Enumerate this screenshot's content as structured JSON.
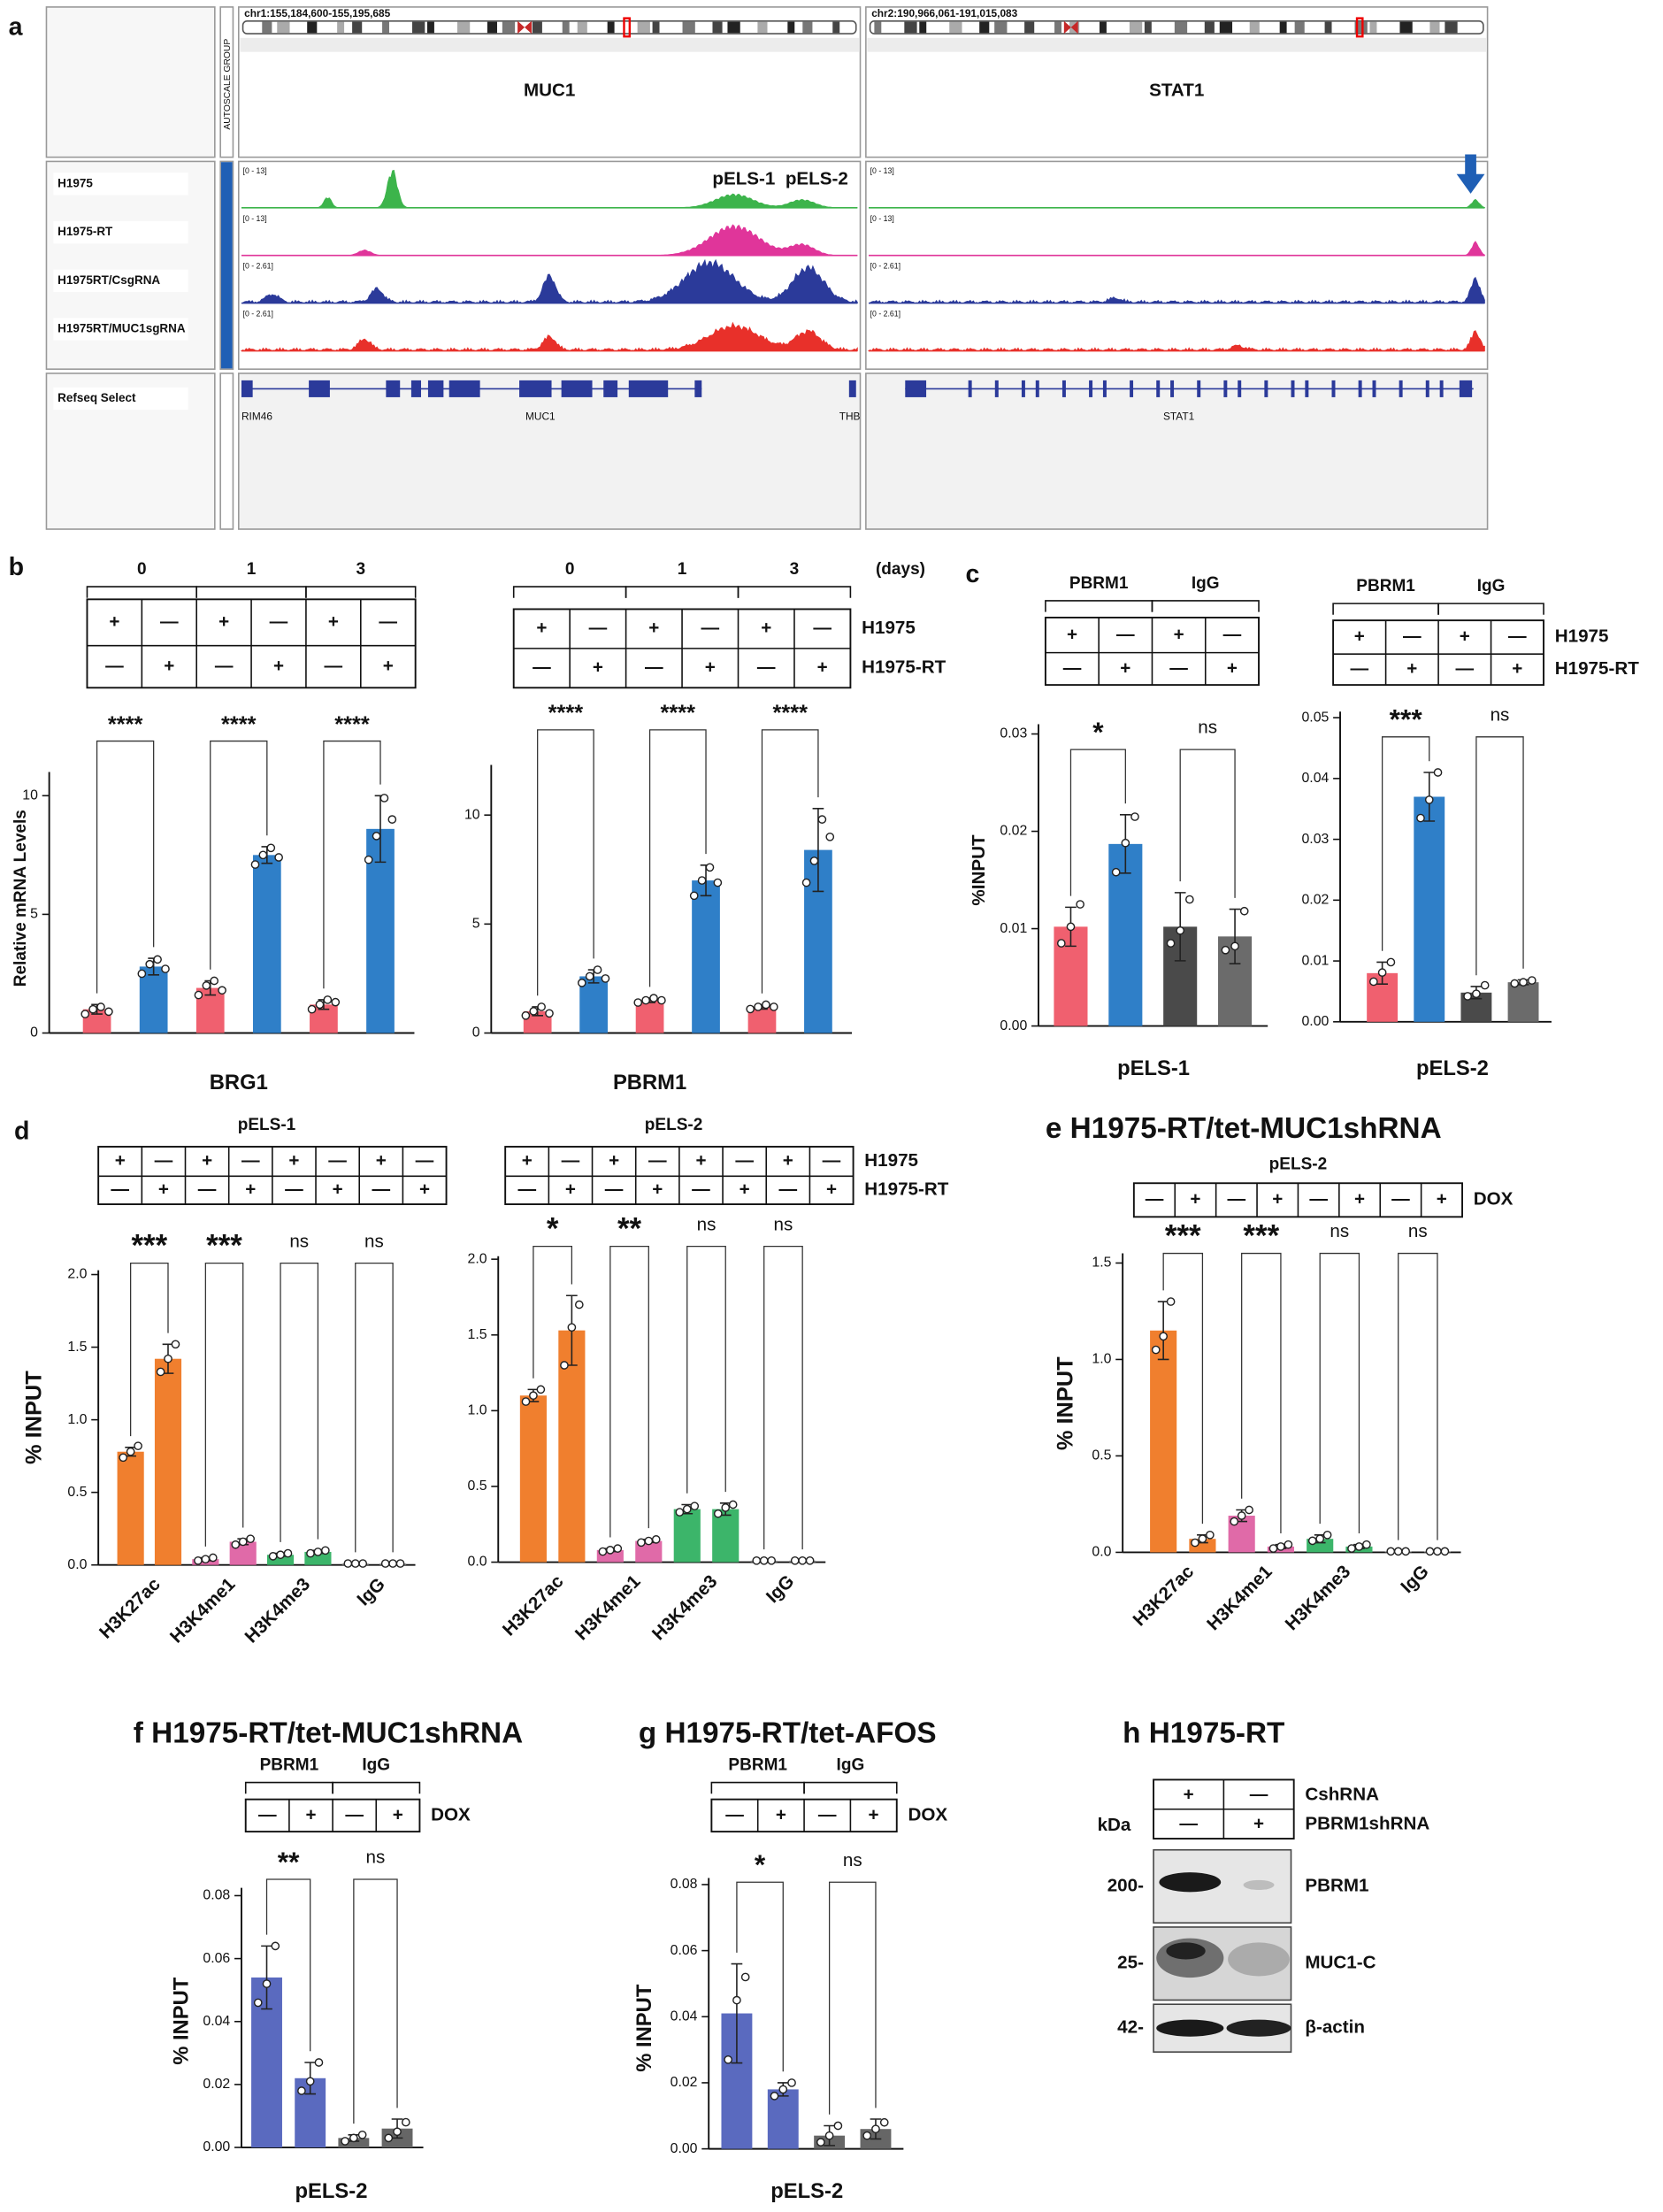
{
  "panel_labels": [
    "a",
    "b",
    "c",
    "d"
  ],
  "browser": {
    "loci": [
      "chr1:155,184,600-155,195,685",
      "chr2:190,966,061-191,015,083"
    ],
    "autoscale": "AUTOSCALE GROUP",
    "genes": [
      "MUC1",
      "STAT1"
    ],
    "tracks": [
      {
        "name": "H1975",
        "range": "[0 - 13]",
        "color": "#3cb44b"
      },
      {
        "name": "H1975-RT",
        "range": "[0 - 13]",
        "color": "#e0359a"
      },
      {
        "name": "H1975RT/CsgRNA",
        "range": "[0 - 2.61]",
        "color": "#2b3a9a"
      },
      {
        "name": "H1975RT/MUC1sgRNA",
        "range": "[0 - 2.61]",
        "color": "#e8302a"
      }
    ],
    "peaks": [
      "pELS-1",
      "pELS-2"
    ],
    "refseq": {
      "name": "Refseq Select",
      "labels": [
        "RIM46",
        "MUC1",
        "THB",
        "STAT1"
      ]
    }
  },
  "chart_data": [
    {
      "type": "bar",
      "xlabel": "BRG1",
      "ylabel": "Relative mRNA Levels",
      "conditions": {
        "headers": [
          "0",
          "1",
          "3"
        ],
        "rows": [
          {
            "cells": [
              "+",
              "—",
              "+",
              "—",
              "+",
              "—"
            ]
          },
          {
            "cells": [
              "—",
              "+",
              "—",
              "+",
              "—",
              "+"
            ]
          }
        ]
      },
      "values": [
        1.0,
        2.8,
        1.9,
        7.5,
        1.2,
        8.6
      ],
      "errors": [
        0.2,
        0.35,
        0.3,
        0.35,
        0.2,
        1.4
      ],
      "points": [
        [
          0.8,
          1.0,
          1.1,
          0.9
        ],
        [
          2.5,
          2.9,
          3.1,
          2.7
        ],
        [
          1.6,
          2.0,
          2.2,
          1.8
        ],
        [
          7.1,
          7.5,
          7.8,
          7.4
        ],
        [
          1.0,
          1.2,
          1.4,
          1.3
        ],
        [
          7.3,
          8.3,
          9.9,
          9.0
        ]
      ],
      "colors": [
        "#f0606f",
        "#2f7fc8",
        "#f0606f",
        "#2f7fc8",
        "#f0606f",
        "#2f7fc8"
      ],
      "ylim": [
        0,
        11
      ],
      "yticks": [
        0,
        5,
        10
      ],
      "significance": [
        "****",
        "****",
        "****"
      ]
    },
    {
      "type": "bar",
      "xlabel": "PBRM1",
      "conditions": {
        "headers": [
          "0",
          "1",
          "3"
        ],
        "header_unit": "(days)",
        "rows": [
          {
            "name": "H1975",
            "color": "#e8302a",
            "cells": [
              "+",
              "—",
              "+",
              "—",
              "+",
              "—"
            ]
          },
          {
            "name": "H1975-RT",
            "color": "#2b48b0",
            "cells": [
              "—",
              "+",
              "—",
              "+",
              "—",
              "+"
            ]
          }
        ]
      },
      "values": [
        1.0,
        2.6,
        1.5,
        7.0,
        1.2,
        8.4
      ],
      "errors": [
        0.2,
        0.3,
        0.1,
        0.7,
        0.1,
        1.9
      ],
      "points": [
        [
          0.8,
          1.0,
          1.2,
          0.9
        ],
        [
          2.3,
          2.6,
          2.9,
          2.5
        ],
        [
          1.4,
          1.5,
          1.6,
          1.5
        ],
        [
          6.3,
          7.0,
          7.6,
          6.9
        ],
        [
          1.1,
          1.2,
          1.3,
          1.2
        ],
        [
          6.9,
          7.9,
          9.8,
          9.0
        ]
      ],
      "colors": [
        "#f0606f",
        "#2f7fc8",
        "#f0606f",
        "#2f7fc8",
        "#f0606f",
        "#2f7fc8"
      ],
      "ylim": [
        0,
        12.3
      ],
      "yticks": [
        0,
        5,
        10
      ],
      "significance": [
        "****",
        "****",
        "****"
      ]
    },
    {
      "type": "bar",
      "xlabel": "pELS-1",
      "ylabel": "%INPUT",
      "conditions": {
        "headers": [
          "PBRM1",
          "IgG"
        ],
        "rows": [
          {
            "cells": [
              "+",
              "—",
              "+",
              "—"
            ]
          },
          {
            "cells": [
              "—",
              "+",
              "—",
              "+"
            ]
          }
        ]
      },
      "values": [
        0.0102,
        0.0187,
        0.0102,
        0.0092
      ],
      "errors": [
        0.002,
        0.003,
        0.0035,
        0.0028
      ],
      "points": [
        [
          0.0085,
          0.0102,
          0.0125
        ],
        [
          0.0158,
          0.0188,
          0.0215
        ],
        [
          0.0085,
          0.0098,
          0.013
        ],
        [
          0.0078,
          0.0082,
          0.0118
        ]
      ],
      "colors": [
        "#f0606f",
        "#2f7fc8",
        "#4a4a4a",
        "#6b6b6b"
      ],
      "ylim": [
        0,
        0.031
      ],
      "yticks": [
        {
          "value": 0,
          "label": "0.00"
        },
        {
          "value": 0.01,
          "label": "0.01"
        },
        {
          "value": 0.02,
          "label": "0.02"
        },
        {
          "value": 0.03,
          "label": "0.03"
        }
      ],
      "significance": [
        "*",
        "ns"
      ]
    },
    {
      "type": "bar",
      "xlabel": "pELS-2",
      "conditions": {
        "headers": [
          "PBRM1",
          "IgG"
        ],
        "rows": [
          {
            "name": "H1975",
            "color": "#e8302a",
            "cells": [
              "+",
              "—",
              "+",
              "—"
            ]
          },
          {
            "name": "H1975-RT",
            "color": "#2b48b0",
            "cells": [
              "—",
              "+",
              "—",
              "+"
            ]
          }
        ]
      },
      "values": [
        0.008,
        0.037,
        0.0048,
        0.0065
      ],
      "errors": [
        0.0018,
        0.004,
        0.001,
        0.0004
      ],
      "points": [
        [
          0.0066,
          0.0081,
          0.0098
        ],
        [
          0.0335,
          0.0365,
          0.041
        ],
        [
          0.0042,
          0.0046,
          0.006
        ],
        [
          0.0063,
          0.0065,
          0.0068
        ]
      ],
      "colors": [
        "#f0606f",
        "#2f7fc8",
        "#4a4a4a",
        "#6b6b6b"
      ],
      "ylim": [
        0,
        0.051
      ],
      "yticks": [
        {
          "value": 0,
          "label": "0.00"
        },
        {
          "value": 0.01,
          "label": "0.01"
        },
        {
          "value": 0.02,
          "label": "0.02"
        },
        {
          "value": 0.03,
          "label": "0.03"
        },
        {
          "value": 0.04,
          "label": "0.04"
        },
        {
          "value": 0.05,
          "label": "0.05"
        }
      ],
      "significance": [
        "***",
        "ns"
      ]
    },
    {
      "type": "bar",
      "subtitle": "pELS-1",
      "ylabel": "% INPUT",
      "groups": [
        "H3K27ac",
        "H3K4me1",
        "H3K4me3",
        "IgG"
      ],
      "conditions": {
        "rows": [
          {
            "cells": [
              "+",
              "—",
              "+",
              "—",
              "+",
              "—",
              "+",
              "—"
            ]
          },
          {
            "cells": [
              "—",
              "+",
              "—",
              "+",
              "—",
              "+",
              "—",
              "+"
            ]
          }
        ]
      },
      "values": [
        0.78,
        1.42,
        0.04,
        0.16,
        0.07,
        0.09,
        0.01,
        0.01
      ],
      "errors": [
        0.03,
        0.1,
        0.01,
        0.02,
        0.01,
        0.01,
        0,
        0
      ],
      "points": [
        [
          0.74,
          0.78,
          0.82
        ],
        [
          1.33,
          1.42,
          1.52
        ],
        [
          0.03,
          0.04,
          0.05
        ],
        [
          0.14,
          0.16,
          0.18
        ],
        [
          0.06,
          0.07,
          0.08
        ],
        [
          0.08,
          0.09,
          0.1
        ],
        [
          0.01,
          0.01,
          0.01
        ],
        [
          0.01,
          0.01,
          0.01
        ]
      ],
      "colors": [
        "#f07f2e",
        "#f07f2e",
        "#e06aa8",
        "#e06aa8",
        "#3cb56a",
        "#3cb56a",
        "#8a8a8a",
        "#8a8a8a"
      ],
      "ylim": [
        0,
        2.03
      ],
      "yticks": [
        {
          "value": 0,
          "label": "0.0"
        },
        {
          "value": 0.5,
          "label": "0.5"
        },
        {
          "value": 1,
          "label": "1.0"
        },
        {
          "value": 1.5,
          "label": "1.5"
        },
        {
          "value": 2,
          "label": "2.0"
        }
      ],
      "significance": [
        "***",
        "***",
        "ns",
        "ns"
      ]
    },
    {
      "type": "bar",
      "subtitle": "pELS-2",
      "groups": [
        "H3K27ac",
        "H3K4me1",
        "H3K4me3",
        "IgG"
      ],
      "conditions": {
        "rows": [
          {
            "name": "H1975",
            "color": "#111111",
            "cells": [
              "+",
              "—",
              "+",
              "—",
              "+",
              "—",
              "+",
              "—"
            ]
          },
          {
            "name": "H1975-RT",
            "color": "#111111",
            "cells": [
              "—",
              "+",
              "—",
              "+",
              "—",
              "+",
              "—",
              "+"
            ]
          }
        ]
      },
      "values": [
        1.1,
        1.53,
        0.08,
        0.14,
        0.35,
        0.35,
        0.01,
        0.01
      ],
      "errors": [
        0.04,
        0.23,
        0.01,
        0.01,
        0.03,
        0.04,
        0,
        0
      ],
      "points": [
        [
          1.06,
          1.1,
          1.14
        ],
        [
          1.3,
          1.55,
          1.7
        ],
        [
          0.07,
          0.08,
          0.09
        ],
        [
          0.13,
          0.14,
          0.15
        ],
        [
          0.33,
          0.35,
          0.37
        ],
        [
          0.32,
          0.36,
          0.38
        ],
        [
          0.01,
          0.01,
          0.01
        ],
        [
          0.01,
          0.01,
          0.01
        ]
      ],
      "colors": [
        "#f07f2e",
        "#f07f2e",
        "#e06aa8",
        "#e06aa8",
        "#3cb56a",
        "#3cb56a",
        "#8a8a8a",
        "#8a8a8a"
      ],
      "ylim": [
        0,
        2.02
      ],
      "yticks": [
        {
          "value": 0,
          "label": "0.0"
        },
        {
          "value": 0.5,
          "label": "0.5"
        },
        {
          "value": 1,
          "label": "1.0"
        },
        {
          "value": 1.5,
          "label": "1.5"
        },
        {
          "value": 2,
          "label": "2.0"
        }
      ],
      "significance": [
        "*",
        "**",
        "ns",
        "ns"
      ]
    },
    {
      "type": "bar",
      "title": "e H1975-RT/tet-MUC1shRNA",
      "subtitle": "pELS-2",
      "ylabel": "% INPUT",
      "groups": [
        "H3K27ac",
        "H3K4me1",
        "H3K4me3",
        "IgG"
      ],
      "conditions": {
        "rows": [
          {
            "name": "DOX",
            "color": "#111111",
            "cells": [
              "—",
              "+",
              "—",
              "+",
              "—",
              "+",
              "—",
              "+"
            ]
          }
        ]
      },
      "values": [
        1.15,
        0.07,
        0.19,
        0.03,
        0.07,
        0.03,
        0.005,
        0.005
      ],
      "errors": [
        0.15,
        0.02,
        0.03,
        0.01,
        0.02,
        0.01,
        0,
        0
      ],
      "points": [
        [
          1.05,
          1.12,
          1.3
        ],
        [
          0.05,
          0.07,
          0.09
        ],
        [
          0.16,
          0.19,
          0.22
        ],
        [
          0.02,
          0.03,
          0.04
        ],
        [
          0.06,
          0.07,
          0.09
        ],
        [
          0.02,
          0.03,
          0.04
        ],
        [
          0.005,
          0.005,
          0.005
        ],
        [
          0.005,
          0.005,
          0.005
        ]
      ],
      "colors": [
        "#f07f2e",
        "#f07f2e",
        "#e06aa8",
        "#e06aa8",
        "#3cb56a",
        "#3cb56a",
        "#8a8a8a",
        "#8a8a8a"
      ],
      "ylim": [
        0,
        1.55
      ],
      "yticks": [
        {
          "value": 0,
          "label": "0.0"
        },
        {
          "value": 0.5,
          "label": "0.5"
        },
        {
          "value": 1,
          "label": "1.0"
        },
        {
          "value": 1.5,
          "label": "1.5"
        }
      ],
      "significance": [
        "***",
        "***",
        "ns",
        "ns"
      ]
    },
    {
      "type": "bar",
      "title": "f H1975-RT/tet-MUC1shRNA",
      "xlabel": "pELS-2",
      "ylabel": "% INPUT",
      "conditions": {
        "headers": [
          "PBRM1",
          "IgG"
        ],
        "rows": [
          {
            "name": "DOX",
            "color": "#111111",
            "cells": [
              "—",
              "+",
              "—",
              "+"
            ]
          }
        ]
      },
      "values": [
        0.054,
        0.022,
        0.003,
        0.006
      ],
      "errors": [
        0.01,
        0.005,
        0.001,
        0.003
      ],
      "points": [
        [
          0.046,
          0.052,
          0.064
        ],
        [
          0.018,
          0.021,
          0.027
        ],
        [
          0.002,
          0.003,
          0.004
        ],
        [
          0.003,
          0.005,
          0.008
        ]
      ],
      "colors": [
        "#5a6abf",
        "#5a6abf",
        "#666666",
        "#666666"
      ],
      "ylim": [
        0,
        0.0825
      ],
      "yticks": [
        {
          "value": 0,
          "label": "0.00"
        },
        {
          "value": 0.02,
          "label": "0.02"
        },
        {
          "value": 0.04,
          "label": "0.04"
        },
        {
          "value": 0.06,
          "label": "0.06"
        },
        {
          "value": 0.08,
          "label": "0.08"
        }
      ],
      "significance": [
        "**",
        "ns"
      ]
    },
    {
      "type": "bar",
      "title": "g H1975-RT/tet-AFOS",
      "xlabel": "pELS-2",
      "ylabel": "% INPUT",
      "conditions": {
        "headers": [
          "PBRM1",
          "IgG"
        ],
        "rows": [
          {
            "name": "DOX",
            "color": "#111111",
            "cells": [
              "—",
              "+",
              "—",
              "+"
            ]
          }
        ]
      },
      "values": [
        0.041,
        0.018,
        0.004,
        0.006
      ],
      "errors": [
        0.015,
        0.002,
        0.003,
        0.003
      ],
      "points": [
        [
          0.027,
          0.045,
          0.052
        ],
        [
          0.016,
          0.018,
          0.02
        ],
        [
          0.002,
          0.004,
          0.007
        ],
        [
          0.004,
          0.006,
          0.008
        ]
      ],
      "colors": [
        "#5a6abf",
        "#5a6abf",
        "#666666",
        "#666666"
      ],
      "ylim": [
        0,
        0.082
      ],
      "yticks": [
        {
          "value": 0,
          "label": "0.00"
        },
        {
          "value": 0.02,
          "label": "0.02"
        },
        {
          "value": 0.04,
          "label": "0.04"
        },
        {
          "value": 0.06,
          "label": "0.06"
        },
        {
          "value": 0.08,
          "label": "0.08"
        }
      ],
      "significance": [
        "*",
        "ns"
      ]
    }
  ],
  "panel_h": {
    "title": "h H1975-RT",
    "rows": [
      {
        "name": "CshRNA",
        "cells": [
          "+",
          "—"
        ]
      },
      {
        "name": "PBRM1shRNA",
        "cells": [
          "—",
          "+"
        ]
      }
    ],
    "unit": "kDa",
    "bands": [
      {
        "marker": "200-",
        "name": "PBRM1"
      },
      {
        "marker": "25-",
        "name": "MUC1-C"
      },
      {
        "marker": "42-",
        "name": "β-actin"
      }
    ]
  }
}
